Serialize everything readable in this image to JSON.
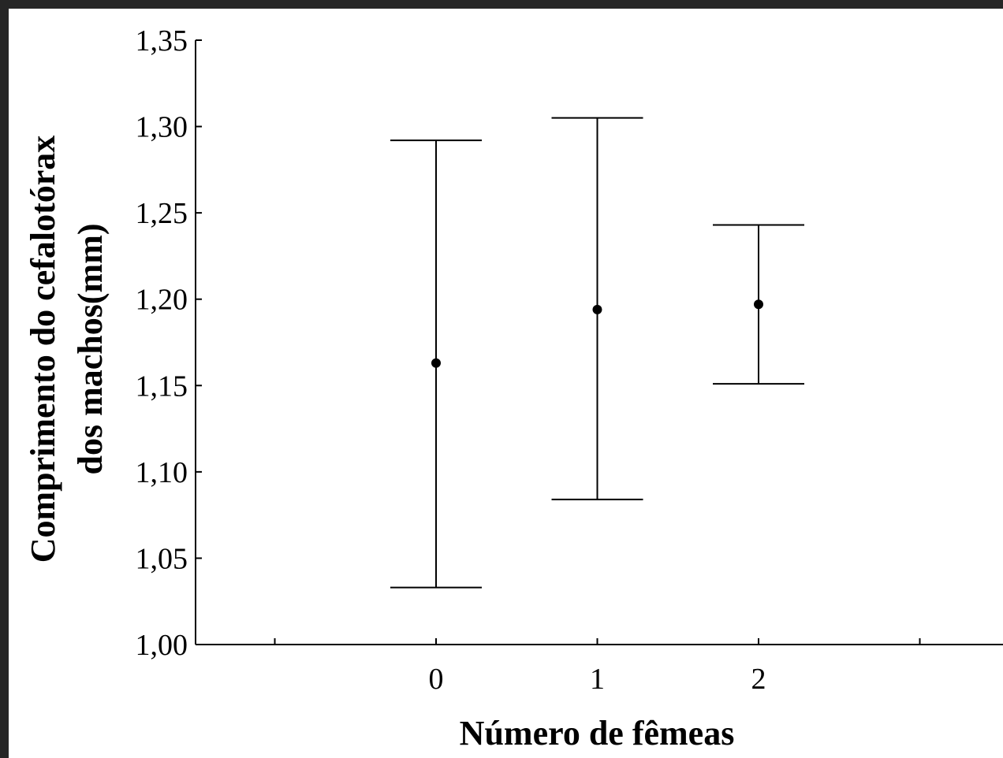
{
  "colors": {
    "background_frame": "#262626",
    "plot_background": "#ffffff",
    "ink": "#000000"
  },
  "chart_data": {
    "type": "scatter",
    "subtype": "mean-with-error-bars",
    "xlabel": "Número de fêmeas",
    "ylabel_lines": [
      "Comprimento do cefalotórax",
      "dos machos(mm)"
    ],
    "x_tick_labels": [
      "0",
      "1",
      "2"
    ],
    "x_ticks_unlabeled": [
      -1,
      3
    ],
    "xlim": [
      -1.5,
      3.5
    ],
    "ylim": [
      1.0,
      1.35
    ],
    "y_ticks": [
      1.0,
      1.05,
      1.1,
      1.15,
      1.2,
      1.25,
      1.3,
      1.35
    ],
    "y_tick_labels": [
      "1,00",
      "1,05",
      "1,10",
      "1,15",
      "1,20",
      "1,25",
      "1,30",
      "1,35"
    ],
    "points": [
      {
        "x": 0,
        "mean": 1.163,
        "lower": 1.033,
        "upper": 1.292
      },
      {
        "x": 1,
        "mean": 1.194,
        "lower": 1.084,
        "upper": 1.305
      },
      {
        "x": 2,
        "mean": 1.197,
        "lower": 1.151,
        "upper": 1.243
      }
    ],
    "grid": false,
    "legend": "none"
  }
}
